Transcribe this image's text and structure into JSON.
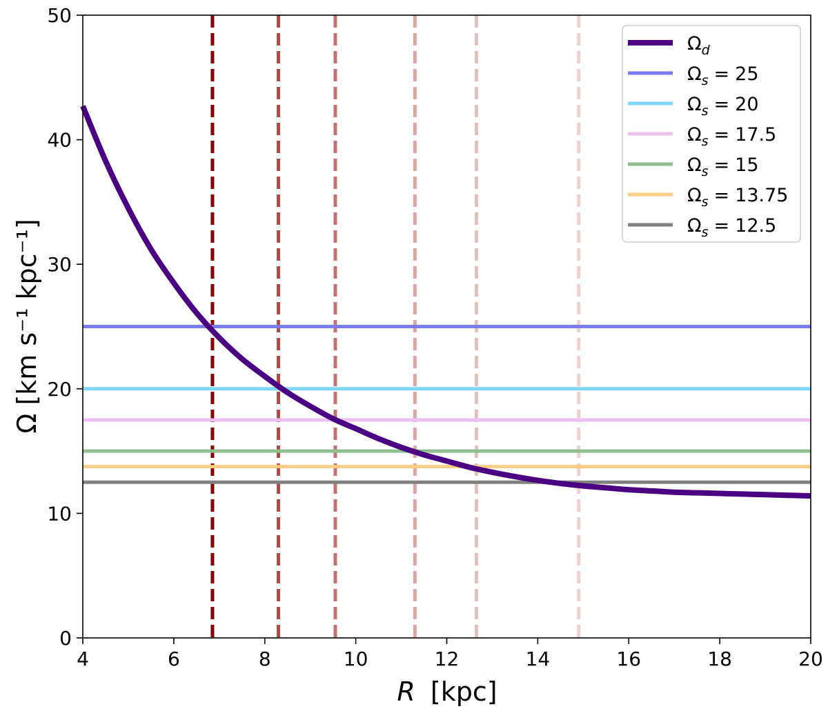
{
  "chart_data": {
    "type": "line",
    "title": "",
    "xlabel": "R [kpc]",
    "xlabel_italic": "R",
    "xlabel_unit": "[kpc]",
    "ylabel": "Ω [km s⁻¹ kpc⁻¹]",
    "xlim": [
      4,
      20
    ],
    "ylim": [
      0,
      50
    ],
    "xticks": [
      4,
      6,
      8,
      10,
      12,
      14,
      16,
      18,
      20
    ],
    "yticks": [
      0,
      10,
      20,
      30,
      40,
      50
    ],
    "grid": false,
    "legend_position": "top-right",
    "curve": {
      "name": "Ω_d",
      "label": "Ω",
      "subscript": "d",
      "color": "#4b0082",
      "x": [
        4,
        4.5,
        5,
        5.5,
        6,
        6.5,
        7,
        7.5,
        8,
        8.5,
        9,
        9.5,
        10,
        10.5,
        11,
        11.5,
        12,
        12.5,
        13,
        13.5,
        14,
        14.5,
        15,
        15.5,
        16,
        16.5,
        17,
        17.5,
        18,
        18.5,
        19,
        19.5,
        20
      ],
      "y": [
        42.7,
        38.3,
        34.5,
        31.2,
        28.5,
        26.1,
        24.1,
        22.4,
        21.0,
        19.7,
        18.6,
        17.6,
        16.8,
        16.0,
        15.3,
        14.7,
        14.2,
        13.7,
        13.3,
        12.95,
        12.65,
        12.4,
        12.2,
        12.05,
        11.9,
        11.8,
        11.7,
        11.65,
        11.6,
        11.55,
        11.5,
        11.45,
        11.4
      ]
    },
    "horizontal_lines": [
      {
        "label": "Ω",
        "subscript": "s",
        "value": 25,
        "value_text": "25",
        "color": "#7b7bee"
      },
      {
        "label": "Ω",
        "subscript": "s",
        "value": 20,
        "value_text": "20",
        "color": "#7fd8fb"
      },
      {
        "label": "Ω",
        "subscript": "s",
        "value": 17.5,
        "value_text": "17.5",
        "color": "#efc0ef"
      },
      {
        "label": "Ω",
        "subscript": "s",
        "value": 15,
        "value_text": "15",
        "color": "#8fbf8f"
      },
      {
        "label": "Ω",
        "subscript": "s",
        "value": 13.75,
        "value_text": "13.75",
        "color": "#fccd82"
      },
      {
        "label": "Ω",
        "subscript": "s",
        "value": 12.5,
        "value_text": "12.5",
        "color": "#808080"
      }
    ],
    "vertical_lines": [
      {
        "x": 6.85,
        "color": "#8b0000",
        "opacity": 1.0
      },
      {
        "x": 8.3,
        "color": "#8b0000",
        "opacity": 0.7
      },
      {
        "x": 9.55,
        "color": "#8b0000",
        "opacity": 0.55
      },
      {
        "x": 11.3,
        "color": "#8b0000",
        "opacity": 0.35
      },
      {
        "x": 12.65,
        "color": "#8b0000",
        "opacity": 0.25
      },
      {
        "x": 14.9,
        "color": "#8b0000",
        "opacity": 0.18
      }
    ]
  }
}
